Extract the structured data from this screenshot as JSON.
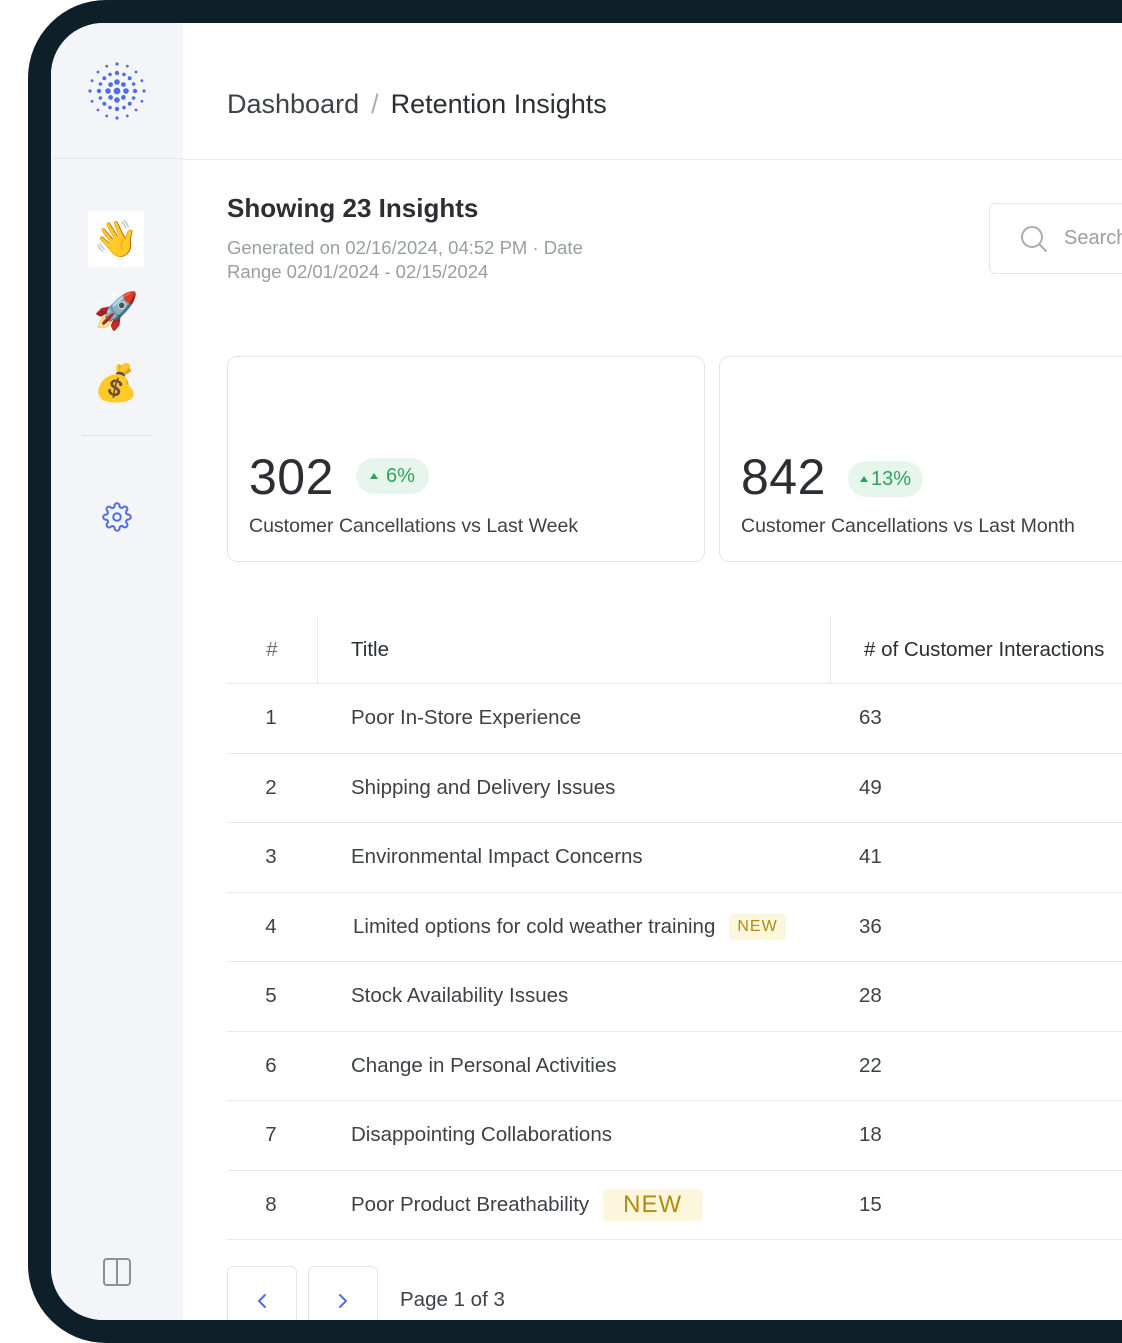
{
  "breadcrumb": {
    "root": "Dashboard",
    "separator": "/",
    "current": "Retention Insights"
  },
  "sidebar": {
    "items": [
      {
        "name": "wave",
        "glyph": "👋",
        "active": true
      },
      {
        "name": "rocket",
        "glyph": "🚀",
        "active": false
      },
      {
        "name": "money-bag",
        "glyph": "💰",
        "active": false
      }
    ],
    "settings_icon": "gear-icon",
    "panel_icon": "panel-toggle-icon"
  },
  "header": {
    "title": "Showing 23 Insights",
    "generated": "Generated on 02/16/2024, 04:52 PM · Date Range 02/01/2024 - 02/15/2024"
  },
  "search": {
    "placeholder": "Search"
  },
  "stats": [
    {
      "value": "302",
      "change": "6%",
      "label": "Customer Cancellations vs Last Week"
    },
    {
      "value": "842",
      "change": "13%",
      "label": "Customer Cancellations vs Last Month"
    }
  ],
  "table": {
    "headers": {
      "num": "#",
      "title": "Title",
      "interactions": "# of Customer Interactions"
    },
    "rows": [
      {
        "num": "1",
        "title": "Poor In-Store Experience",
        "count": "63",
        "badge": ""
      },
      {
        "num": "2",
        "title": "Shipping and Delivery Issues",
        "count": "49",
        "badge": ""
      },
      {
        "num": "3",
        "title": "Environmental Impact Concerns",
        "count": "41",
        "badge": ""
      },
      {
        "num": "4",
        "title": "Limited options for cold weather training",
        "count": "36",
        "badge": "NEW"
      },
      {
        "num": "5",
        "title": "Stock Availability Issues",
        "count": "28",
        "badge": ""
      },
      {
        "num": "6",
        "title": "Change in Personal Activities",
        "count": "22",
        "badge": ""
      },
      {
        "num": "7",
        "title": "Disappointing Collaborations",
        "count": "18",
        "badge": ""
      },
      {
        "num": "8",
        "title": "Poor Product Breathability",
        "count": "15",
        "badge": "NEW"
      }
    ]
  },
  "pagination": {
    "label": "Page 1 of 3"
  },
  "colors": {
    "accent": "#4f6de6",
    "positive": "#2ea25a",
    "new_badge": "#b08c0e",
    "bezel": "#0d1f29"
  }
}
